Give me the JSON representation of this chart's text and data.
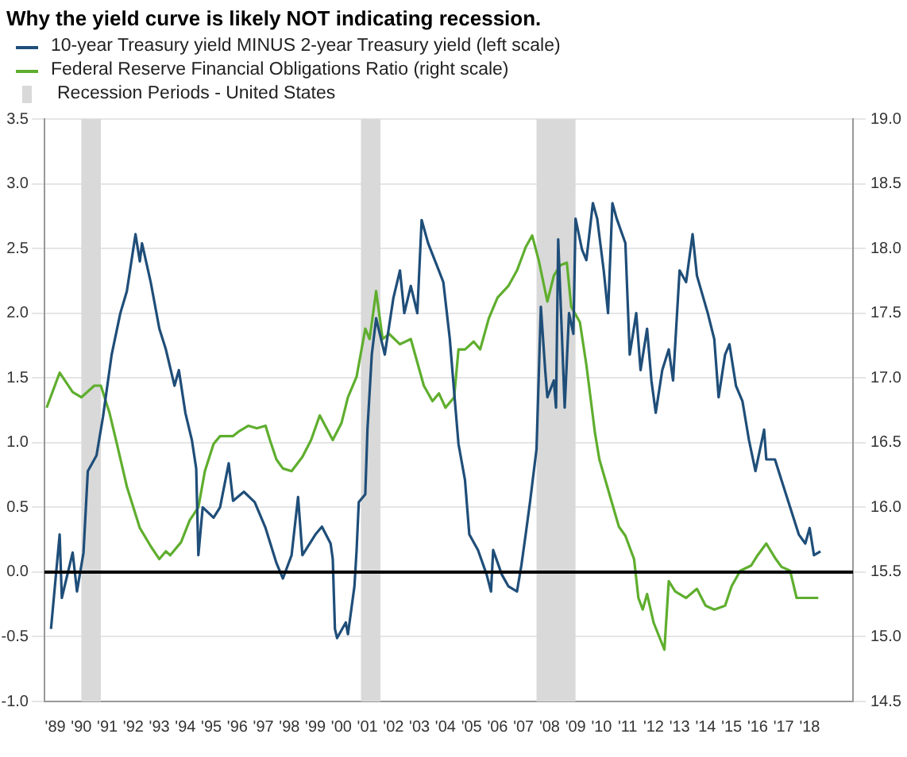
{
  "chart_data": {
    "type": "line",
    "title": "Why the yield curve is likely NOT indicating recession.",
    "xlim": [
      "1989-02",
      "2020-03"
    ],
    "xticks": [
      {
        "value": "1989-07",
        "label": "'89"
      },
      {
        "value": "1990-07",
        "label": "'90"
      },
      {
        "value": "1991-07",
        "label": "'91"
      },
      {
        "value": "1992-07",
        "label": "'92"
      },
      {
        "value": "1993-07",
        "label": "'93"
      },
      {
        "value": "1994-07",
        "label": "'94"
      },
      {
        "value": "1995-07",
        "label": "'95"
      },
      {
        "value": "1996-07",
        "label": "'96"
      },
      {
        "value": "1997-07",
        "label": "'97"
      },
      {
        "value": "1998-07",
        "label": "'98"
      },
      {
        "value": "1999-07",
        "label": "'99"
      },
      {
        "value": "2000-07",
        "label": "'00"
      },
      {
        "value": "2001-07",
        "label": "'01"
      },
      {
        "value": "2002-07",
        "label": "'02"
      },
      {
        "value": "2003-07",
        "label": "'03"
      },
      {
        "value": "2004-07",
        "label": "'04"
      },
      {
        "value": "2005-07",
        "label": "'05"
      },
      {
        "value": "2006-07",
        "label": "'06"
      },
      {
        "value": "2007-07",
        "label": "'07"
      },
      {
        "value": "2008-07",
        "label": "'08"
      },
      {
        "value": "2009-07",
        "label": "'09"
      },
      {
        "value": "2010-07",
        "label": "'10"
      },
      {
        "value": "2011-07",
        "label": "'11"
      },
      {
        "value": "2012-07",
        "label": "'12"
      },
      {
        "value": "2013-07",
        "label": "'13"
      },
      {
        "value": "2014-07",
        "label": "'14"
      },
      {
        "value": "2015-07",
        "label": "'15"
      },
      {
        "value": "2016-07",
        "label": "'16"
      },
      {
        "value": "2017-07",
        "label": "'17"
      },
      {
        "value": "2018-07",
        "label": "'18"
      }
    ],
    "ylim": [
      -1.0,
      3.5
    ],
    "yticks": [
      {
        "value": -1,
        "label": "-1.0"
      },
      {
        "value": -0.5,
        "label": "-0.5"
      },
      {
        "value": 0,
        "label": "0.0"
      },
      {
        "value": 0.5,
        "label": "0.5"
      },
      {
        "value": 1,
        "label": "1.0"
      },
      {
        "value": 1.5,
        "label": "1.5"
      },
      {
        "value": 2,
        "label": "2.0"
      },
      {
        "value": 2.5,
        "label": "2.5"
      },
      {
        "value": 3,
        "label": "3.0"
      },
      {
        "value": 3.5,
        "label": "3.5"
      }
    ],
    "y2lim": [
      14.5,
      19.0
    ],
    "y2ticks": [
      {
        "value": 14.5,
        "label": "14.5"
      },
      {
        "value": 15,
        "label": "15.0"
      },
      {
        "value": 15.5,
        "label": "15.5"
      },
      {
        "value": 16,
        "label": "16.0"
      },
      {
        "value": 16.5,
        "label": "16.5"
      },
      {
        "value": 17,
        "label": "17.0"
      },
      {
        "value": 17.5,
        "label": "17.5"
      },
      {
        "value": 18,
        "label": "18.0"
      },
      {
        "value": 18.5,
        "label": "18.5"
      },
      {
        "value": 19,
        "label": "19.0"
      }
    ],
    "grid": "y",
    "legend": "top left",
    "marker": "none",
    "line_style": "solid",
    "series": [
      {
        "name": "10-year Treasury yield MINUS 2-year Treasury yield (left scale)",
        "color": "#1f4e79",
        "x": [
          "1989-05",
          "1989-09",
          "1989-10",
          "1990-03",
          "1990-05",
          "1990-08",
          "1990-10",
          "1991-02",
          "1991-05",
          "1991-09",
          "1992-01",
          "1992-04",
          "1992-08",
          "1992-10",
          "1992-11",
          "1993-03",
          "1993-07",
          "1993-10",
          "1994-02",
          "1994-04",
          "1994-07",
          "1994-10",
          "1994-12",
          "1995-01",
          "1995-03",
          "1995-08",
          "1995-11",
          "1996-03",
          "1996-05",
          "1996-10",
          "1997-03",
          "1997-08",
          "1998-01",
          "1998-04",
          "1998-08",
          "1998-11",
          "1999-01",
          "1999-07",
          "1999-10",
          "2000-02",
          "2000-03",
          "2000-04",
          "2000-05",
          "2000-09",
          "2000-10",
          "2001-01",
          "2001-02",
          "2001-03",
          "2001-06",
          "2001-07",
          "2001-09",
          "2001-11",
          "2002-03",
          "2002-07",
          "2002-10",
          "2002-12",
          "2003-03",
          "2003-06",
          "2003-08",
          "2003-11",
          "2004-03",
          "2004-06",
          "2004-09",
          "2004-11",
          "2005-01",
          "2005-04",
          "2005-06",
          "2005-10",
          "2006-02",
          "2006-04",
          "2006-05",
          "2006-09",
          "2006-12",
          "2007-04",
          "2007-06",
          "2007-08",
          "2007-10",
          "2008-01",
          "2008-03",
          "2008-05",
          "2008-06",
          "2008-09",
          "2008-10",
          "2008-11",
          "2009-02",
          "2009-04",
          "2009-06",
          "2009-07",
          "2009-10",
          "2009-12",
          "2010-03",
          "2010-05",
          "2010-08",
          "2010-10",
          "2010-12",
          "2011-02",
          "2011-06",
          "2011-08",
          "2011-11",
          "2012-01",
          "2012-04",
          "2012-06",
          "2012-08",
          "2012-11",
          "2013-02",
          "2013-04",
          "2013-07",
          "2013-10",
          "2014-01",
          "2014-03",
          "2014-08",
          "2014-11",
          "2015-01",
          "2015-04",
          "2015-06",
          "2015-09",
          "2015-12",
          "2016-03",
          "2016-06",
          "2016-10",
          "2016-11",
          "2017-03",
          "2017-06",
          "2017-10",
          "2018-02",
          "2018-05",
          "2018-07",
          "2018-09",
          "2018-12"
        ],
        "values": [
          -0.44,
          0.29,
          -0.2,
          0.15,
          -0.15,
          0.15,
          0.78,
          0.9,
          1.2,
          1.68,
          2.0,
          2.17,
          2.61,
          2.4,
          2.54,
          2.24,
          1.88,
          1.72,
          1.44,
          1.56,
          1.23,
          1.02,
          0.8,
          0.13,
          0.5,
          0.42,
          0.5,
          0.84,
          0.55,
          0.62,
          0.54,
          0.34,
          0.07,
          -0.05,
          0.13,
          0.58,
          0.13,
          0.29,
          0.35,
          0.22,
          0.1,
          -0.44,
          -0.51,
          -0.39,
          -0.48,
          -0.11,
          0.17,
          0.54,
          0.6,
          1.1,
          1.68,
          1.96,
          1.68,
          2.12,
          2.33,
          2.0,
          2.21,
          2.0,
          2.72,
          2.54,
          2.37,
          2.24,
          1.8,
          1.39,
          0.99,
          0.71,
          0.29,
          0.17,
          -0.02,
          -0.15,
          0.17,
          -0.02,
          -0.11,
          -0.15,
          0.05,
          0.29,
          0.54,
          0.95,
          2.05,
          1.56,
          1.35,
          1.48,
          1.27,
          2.57,
          1.27,
          2.0,
          1.84,
          2.73,
          2.49,
          2.41,
          2.85,
          2.73,
          2.33,
          2.0,
          2.85,
          2.73,
          2.54,
          1.68,
          2.0,
          1.56,
          1.88,
          1.48,
          1.23,
          1.56,
          1.72,
          1.48,
          2.33,
          2.24,
          2.61,
          2.29,
          2.0,
          1.8,
          1.35,
          1.68,
          1.76,
          1.44,
          1.32,
          1.02,
          0.78,
          1.1,
          0.87,
          0.87,
          0.71,
          0.5,
          0.29,
          0.22,
          0.34,
          0.13,
          0.16
        ]
      },
      {
        "name": "Federal Reserve Financial Obligations Ratio (right scale)",
        "color": "#5fae2e",
        "axis": "y2",
        "x": [
          "1989-03",
          "1989-09",
          "1990-03",
          "1990-07",
          "1991-01",
          "1991-04",
          "1991-08",
          "1991-11",
          "1992-04",
          "1992-10",
          "1993-03",
          "1993-07",
          "1993-10",
          "1993-12",
          "1994-05",
          "1994-09",
          "1995-01",
          "1995-04",
          "1995-08",
          "1995-11",
          "1996-05",
          "1996-08",
          "1996-12",
          "1997-04",
          "1997-08",
          "1997-10",
          "1998-01",
          "1998-04",
          "1998-08",
          "1999-01",
          "1999-05",
          "1999-09",
          "2000-03",
          "2000-07",
          "2000-10",
          "2001-02",
          "2001-06",
          "2001-08",
          "2001-11",
          "2002-02",
          "2002-05",
          "2002-10",
          "2003-03",
          "2003-09",
          "2004-01",
          "2004-04",
          "2004-07",
          "2004-11",
          "2005-01",
          "2005-04",
          "2005-08",
          "2005-11",
          "2006-03",
          "2006-07",
          "2006-12",
          "2007-04",
          "2007-08",
          "2007-11",
          "2008-02",
          "2008-06",
          "2008-09",
          "2008-12",
          "2009-03",
          "2009-05",
          "2009-09",
          "2009-12",
          "2010-04",
          "2010-06",
          "2010-11",
          "2011-03",
          "2011-06",
          "2011-10",
          "2011-12",
          "2012-02",
          "2012-04",
          "2012-07",
          "2012-12",
          "2013-02",
          "2013-05",
          "2013-10",
          "2014-03",
          "2014-07",
          "2014-11",
          "2015-04",
          "2015-07",
          "2015-11",
          "2016-04",
          "2016-07",
          "2016-11",
          "2017-03",
          "2017-06",
          "2017-10",
          "2018-01",
          "2018-06",
          "2018-11"
        ],
        "values": [
          16.77,
          17.04,
          16.89,
          16.85,
          16.94,
          16.94,
          16.73,
          16.52,
          16.16,
          15.84,
          15.7,
          15.6,
          15.66,
          15.63,
          15.73,
          15.9,
          16.0,
          16.28,
          16.49,
          16.55,
          16.55,
          16.59,
          16.63,
          16.61,
          16.63,
          16.52,
          16.37,
          16.3,
          16.28,
          16.39,
          16.52,
          16.71,
          16.52,
          16.65,
          16.85,
          17.01,
          17.38,
          17.3,
          17.67,
          17.3,
          17.34,
          17.26,
          17.3,
          16.94,
          16.82,
          16.88,
          16.77,
          16.85,
          17.22,
          17.22,
          17.28,
          17.22,
          17.46,
          17.62,
          17.71,
          17.83,
          18.01,
          18.1,
          17.91,
          17.59,
          17.79,
          17.87,
          17.89,
          17.55,
          17.43,
          17.1,
          16.57,
          16.37,
          16.08,
          15.85,
          15.78,
          15.6,
          15.3,
          15.21,
          15.33,
          15.11,
          14.9,
          15.43,
          15.35,
          15.3,
          15.37,
          15.24,
          15.21,
          15.24,
          15.39,
          15.51,
          15.55,
          15.63,
          15.72,
          15.61,
          15.54,
          15.51,
          15.3,
          15.3,
          15.3
        ]
      }
    ],
    "bands": [
      {
        "axis": "x",
        "from": "1990-07",
        "to": "1991-04",
        "label": "Recession Periods - United States",
        "color": "#d9d9d9"
      },
      {
        "axis": "x",
        "from": "2001-04",
        "to": "2002-01",
        "color": "#d9d9d9"
      },
      {
        "axis": "x",
        "from": "2008-01",
        "to": "2009-07",
        "color": "#d9d9d9"
      }
    ],
    "ref_lines": [
      {
        "axis": "y",
        "value": 0,
        "color": "#000000"
      }
    ]
  }
}
